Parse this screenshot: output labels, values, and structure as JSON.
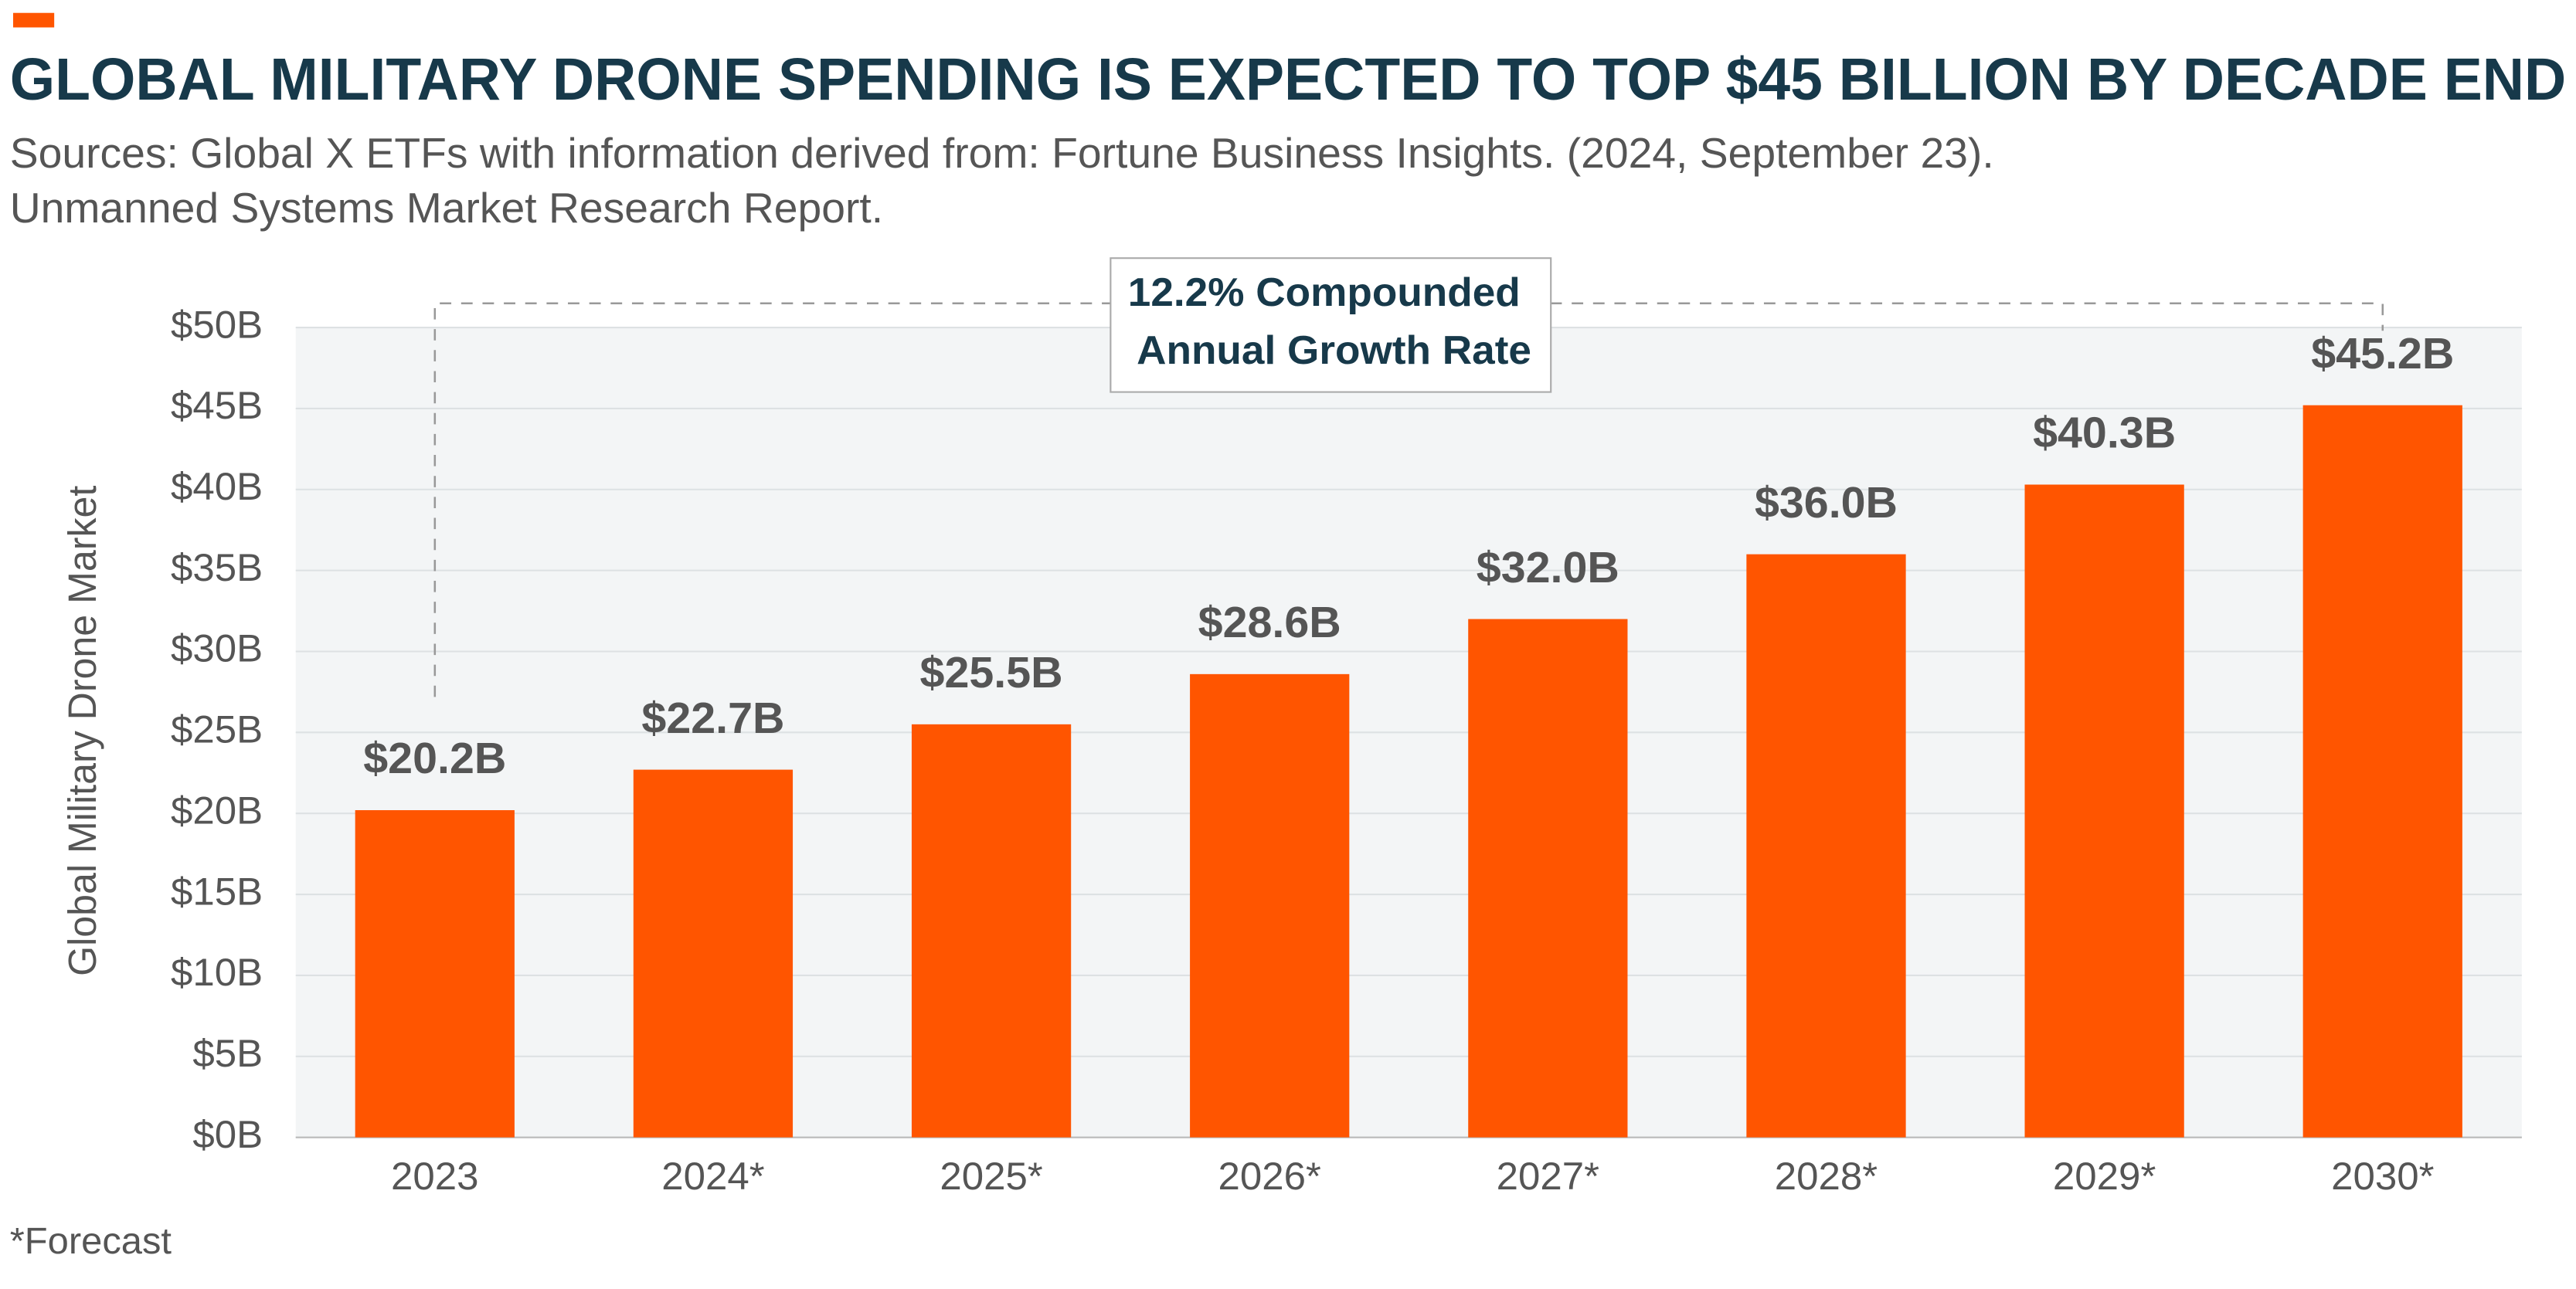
{
  "chart_data": {
    "type": "bar",
    "title": "GLOBAL MILITARY DRONE SPENDING IS EXPECTED TO TOP $45 BILLION BY DECADE END",
    "subtitle": [
      "Sources: Global X ETFs with information derived from: Fortune Business Insights. (2024, September 23).",
      "Unmanned Systems Market Research Report."
    ],
    "y_label": "Global Military Drone Market",
    "annotation": [
      "12.2% Compounded",
      "Annual Growth Rate"
    ],
    "footnote": "*Forecast",
    "categories": [
      "2023",
      "2024*",
      "2025*",
      "2026*",
      "2027*",
      "2028*",
      "2029*",
      "2030*"
    ],
    "values": [
      20.2,
      22.7,
      25.5,
      28.6,
      32.0,
      36.0,
      40.3,
      45.2
    ],
    "value_labels": [
      "$20.2B",
      "$22.7B",
      "$25.5B",
      "$28.6B",
      "$32.0B",
      "$36.0B",
      "$40.3B",
      "$45.2B"
    ],
    "color": "#ff5500",
    "ylim": [
      0,
      50
    ],
    "yticks": [
      {
        "value": 0,
        "label": "$0B"
      },
      {
        "value": 5,
        "label": "$5B"
      },
      {
        "value": 10,
        "label": "$10B"
      },
      {
        "value": 15,
        "label": "$15B"
      },
      {
        "value": 20,
        "label": "$20B"
      },
      {
        "value": 25,
        "label": "$25B"
      },
      {
        "value": 30,
        "label": "$30B"
      },
      {
        "value": 35,
        "label": "$35B"
      },
      {
        "value": 40,
        "label": "$40B"
      },
      {
        "value": 45,
        "label": "$45B"
      },
      {
        "value": 50,
        "label": "$50B"
      }
    ],
    "grid": true
  }
}
